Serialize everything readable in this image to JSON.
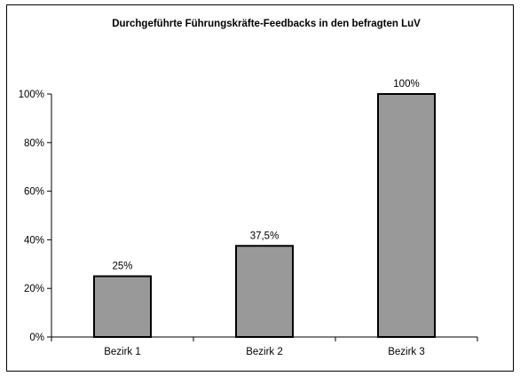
{
  "chart_data": {
    "type": "bar",
    "title": "Durchgeführte Führungskräfte-Feedbacks in den befragten LuV",
    "categories": [
      "Bezirk 1",
      "Bezirk 2",
      "Bezirk 3"
    ],
    "values": [
      25,
      37.5,
      100
    ],
    "data_labels": [
      "25%",
      "37,5%",
      "100%"
    ],
    "ylim": [
      0,
      100
    ],
    "yticks": [
      0,
      20,
      40,
      60,
      80,
      100
    ],
    "ytick_labels": [
      "0%",
      "20%",
      "40%",
      "60%",
      "80%",
      "100%"
    ],
    "xlabel": "",
    "ylabel": "",
    "grid": false,
    "legend": "none",
    "colors": {
      "bar_fill": "#999999",
      "bar_stroke": "#000000",
      "axis": "#000000",
      "background": "#ffffff"
    }
  }
}
